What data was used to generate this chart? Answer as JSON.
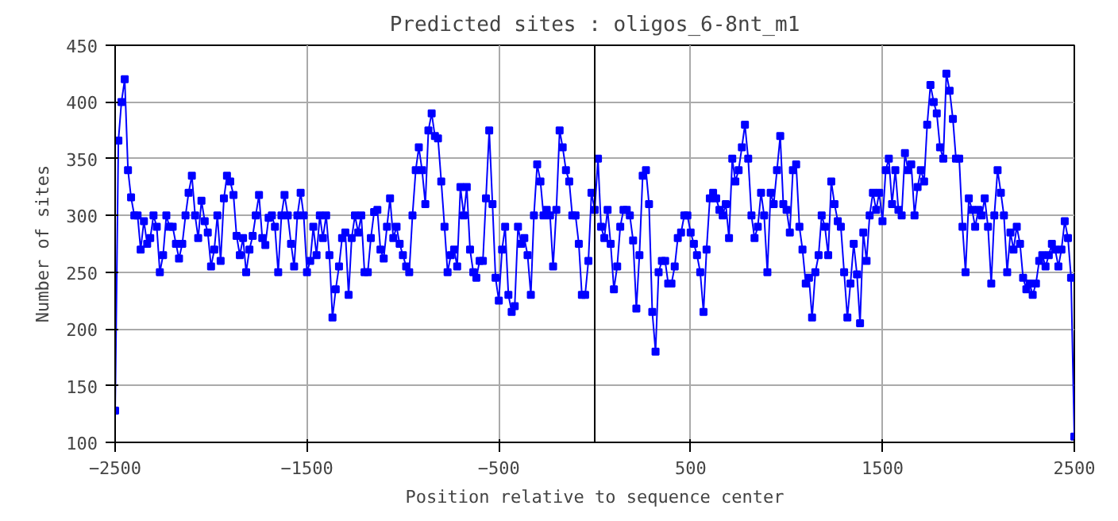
{
  "chart_data": {
    "type": "line",
    "title": "Predicted sites : oligos_6-8nt_m1",
    "xlabel": "Position relative to sequence center",
    "ylabel": "Number of sites",
    "xlim": [
      -2500,
      2500
    ],
    "xticks": [
      -2500,
      -1500,
      -500,
      500,
      1500,
      2500
    ],
    "ylim": [
      100,
      450
    ],
    "yticks": [
      100,
      150,
      200,
      250,
      300,
      350,
      400,
      450
    ],
    "grid": true,
    "marker": "square",
    "line_style": "solid",
    "ref_lines": [
      {
        "axis": "x",
        "value": 0,
        "color": "#000000"
      }
    ],
    "series": [
      {
        "color": "#0000ff",
        "x": [
          -2500,
          -2483,
          -2467,
          -2450,
          -2433,
          -2417,
          -2400,
          -2383,
          -2367,
          -2350,
          -2333,
          -2317,
          -2300,
          -2283,
          -2267,
          -2250,
          -2233,
          -2217,
          -2200,
          -2183,
          -2167,
          -2150,
          -2133,
          -2117,
          -2100,
          -2083,
          -2067,
          -2050,
          -2033,
          -2017,
          -2000,
          -1983,
          -1967,
          -1950,
          -1933,
          -1917,
          -1900,
          -1883,
          -1867,
          -1850,
          -1833,
          -1817,
          -1800,
          -1783,
          -1767,
          -1750,
          -1733,
          -1717,
          -1700,
          -1683,
          -1667,
          -1650,
          -1633,
          -1617,
          -1600,
          -1583,
          -1567,
          -1550,
          -1533,
          -1517,
          -1500,
          -1483,
          -1467,
          -1450,
          -1433,
          -1417,
          -1400,
          -1383,
          -1367,
          -1350,
          -1333,
          -1317,
          -1300,
          -1283,
          -1267,
          -1250,
          -1233,
          -1217,
          -1200,
          -1183,
          -1167,
          -1150,
          -1133,
          -1117,
          -1100,
          -1083,
          -1067,
          -1050,
          -1033,
          -1017,
          -1000,
          -983,
          -967,
          -950,
          -933,
          -917,
          -900,
          -883,
          -867,
          -850,
          -833,
          -817,
          -800,
          -783,
          -767,
          -750,
          -733,
          -717,
          -700,
          -683,
          -667,
          -650,
          -633,
          -617,
          -600,
          -583,
          -567,
          -550,
          -533,
          -517,
          -500,
          -483,
          -467,
          -450,
          -433,
          -417,
          -400,
          -383,
          -367,
          -350,
          -333,
          -317,
          -300,
          -283,
          -267,
          -250,
          -233,
          -217,
          -200,
          -183,
          -167,
          -150,
          -133,
          -117,
          -100,
          -83,
          -67,
          -50,
          -33,
          -17,
          0,
          17,
          33,
          50,
          67,
          83,
          100,
          117,
          133,
          150,
          167,
          183,
          200,
          217,
          233,
          250,
          267,
          283,
          300,
          317,
          333,
          350,
          367,
          383,
          400,
          417,
          433,
          450,
          467,
          483,
          500,
          517,
          533,
          550,
          567,
          583,
          600,
          617,
          633,
          650,
          667,
          683,
          700,
          717,
          733,
          750,
          767,
          783,
          800,
          817,
          833,
          850,
          867,
          883,
          900,
          917,
          933,
          950,
          967,
          983,
          1000,
          1017,
          1033,
          1050,
          1067,
          1083,
          1100,
          1117,
          1133,
          1150,
          1167,
          1183,
          1200,
          1217,
          1233,
          1250,
          1267,
          1283,
          1300,
          1317,
          1333,
          1350,
          1367,
          1383,
          1400,
          1417,
          1433,
          1450,
          1467,
          1483,
          1500,
          1517,
          1533,
          1550,
          1567,
          1583,
          1600,
          1617,
          1633,
          1650,
          1667,
          1683,
          1700,
          1717,
          1733,
          1750,
          1767,
          1783,
          1800,
          1817,
          1833,
          1850,
          1867,
          1883,
          1900,
          1917,
          1933,
          1950,
          1967,
          1983,
          2000,
          2017,
          2033,
          2050,
          2067,
          2083,
          2100,
          2117,
          2133,
          2150,
          2167,
          2183,
          2200,
          2217,
          2233,
          2250,
          2267,
          2283,
          2300,
          2317,
          2333,
          2350,
          2367,
          2383,
          2400,
          2417,
          2433,
          2450,
          2467,
          2483,
          2500
        ],
        "values": [
          128,
          366,
          400,
          420,
          340,
          316,
          300,
          300,
          270,
          295,
          275,
          280,
          300,
          290,
          250,
          265,
          300,
          290,
          290,
          275,
          262,
          275,
          300,
          320,
          335,
          300,
          280,
          313,
          295,
          285,
          255,
          270,
          300,
          260,
          315,
          335,
          330,
          318,
          282,
          265,
          280,
          250,
          270,
          282,
          300,
          318,
          280,
          274,
          298,
          300,
          290,
          250,
          300,
          318,
          300,
          275,
          255,
          300,
          320,
          300,
          250,
          260,
          290,
          265,
          300,
          280,
          300,
          265,
          210,
          235,
          255,
          280,
          285,
          230,
          280,
          300,
          285,
          300,
          250,
          250,
          280,
          303,
          305,
          270,
          262,
          290,
          315,
          280,
          290,
          275,
          265,
          255,
          250,
          300,
          340,
          360,
          340,
          310,
          375,
          390,
          370,
          368,
          330,
          290,
          250,
          265,
          270,
          255,
          325,
          300,
          325,
          270,
          250,
          245,
          260,
          260,
          315,
          375,
          310,
          245,
          225,
          270,
          290,
          230,
          215,
          220,
          290,
          275,
          280,
          265,
          230,
          300,
          345,
          330,
          300,
          305,
          300,
          255,
          305,
          375,
          360,
          340,
          330,
          300,
          300,
          275,
          230,
          230,
          260,
          320,
          305,
          350,
          290,
          280,
          305,
          275,
          235,
          255,
          290,
          305,
          305,
          300,
          278,
          218,
          265,
          335,
          340,
          310,
          215,
          180,
          250,
          260,
          260,
          240,
          240,
          255,
          280,
          285,
          300,
          300,
          285,
          275,
          265,
          250,
          215,
          270,
          315,
          320,
          315,
          305,
          300,
          310,
          280,
          350,
          330,
          340,
          360,
          380,
          350,
          300,
          280,
          290,
          320,
          300,
          250,
          320,
          310,
          340,
          370,
          310,
          305,
          285,
          340,
          345,
          290,
          270,
          240,
          245,
          210,
          250,
          265,
          300,
          290,
          265,
          330,
          310,
          295,
          290,
          250,
          210,
          240,
          275,
          248,
          205,
          285,
          260,
          300,
          320,
          305,
          320,
          295,
          340,
          350,
          310,
          340,
          305,
          300,
          355,
          340,
          345,
          300,
          325,
          340,
          330,
          380,
          415,
          400,
          390,
          360,
          350,
          425,
          410,
          385,
          350,
          350,
          290,
          250,
          315,
          305,
          290,
          305,
          300,
          315,
          290,
          240,
          300,
          340,
          320,
          300,
          250,
          285,
          270,
          290,
          275,
          245,
          235,
          240,
          230,
          240,
          260,
          265,
          255,
          265,
          275,
          270,
          255,
          270,
          295,
          280,
          245,
          105
        ]
      }
    ]
  }
}
